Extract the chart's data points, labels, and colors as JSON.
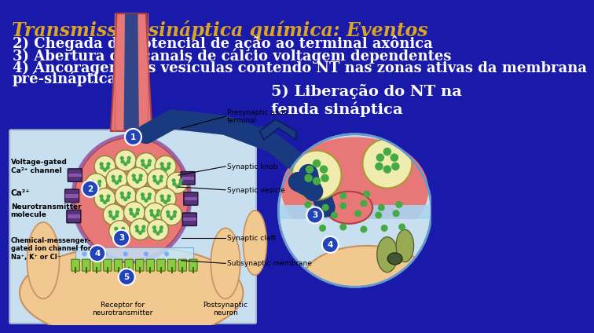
{
  "background_color": "#1a1aaa",
  "title": "Transmissão sináptica química: Eventos",
  "title_color": "#DAA520",
  "title_fontsize": 17,
  "body_text_color": "#FFFFFF",
  "body_fontsize": 13,
  "lines": [
    "2) Chegada do potencial de ação ao terminal axônica",
    "3) Abertura dos canais de cálcio voltagem dependentes",
    "4) Ancoragem das vesículas contendo NT nas zonas ativas da membrana",
    "pré-sináptica"
  ],
  "label5_text": "5) Liberação do NT na\nfenda sináptica",
  "label5_color": "#FFFFFF",
  "label5_fontsize": 14,
  "panel_bg": "#c8dff0",
  "arrow_color": "#1a3a80"
}
